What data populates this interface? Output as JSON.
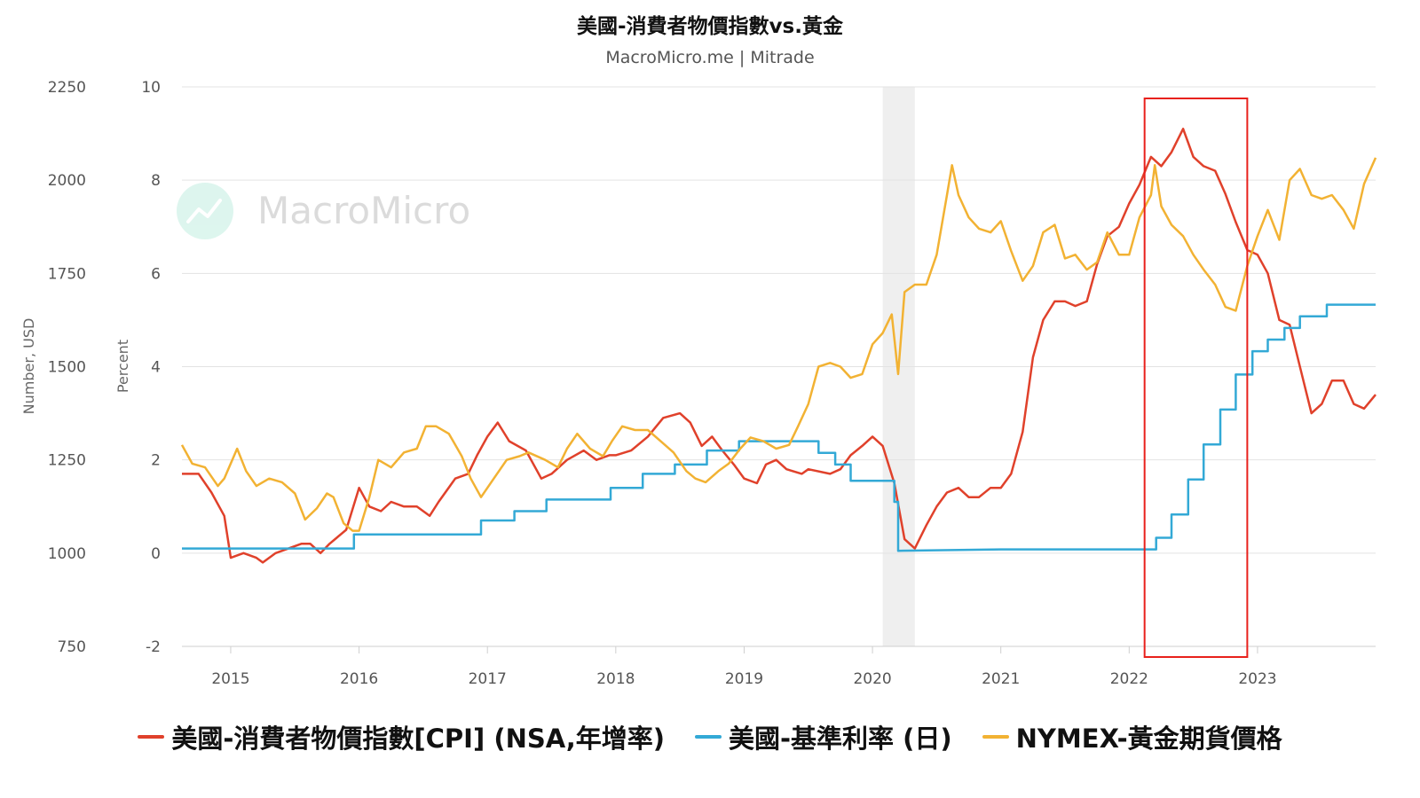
{
  "chart_data": {
    "type": "line",
    "title": "美國-消費者物價指數vs.黃金",
    "subtitle": "MacroMicro.me | Mitrade",
    "watermark": "MacroMicro",
    "left_axis": {
      "label": "Number, USD",
      "range": [
        750,
        2250
      ],
      "ticks": [
        "2250",
        "2000",
        "1750",
        "1500",
        "1250",
        "1000",
        "750"
      ]
    },
    "right_axis": {
      "label": "Percent",
      "range": [
        -2,
        10
      ],
      "ticks": [
        "10",
        "8",
        "6",
        "4",
        "2",
        "0",
        "-2"
      ]
    },
    "x_ticks": [
      "2015",
      "2016",
      "2017",
      "2018",
      "2019",
      "2020",
      "2021",
      "2022",
      "2023"
    ],
    "x_range": [
      2014.62,
      2023.92
    ],
    "grid": true,
    "legend_position": "bottom",
    "recession_band": [
      2020.08,
      2020.33
    ],
    "highlight_box": [
      2022.12,
      2022.92
    ],
    "series": [
      {
        "name": "美國-消費者物價指數[CPI] (NSA,年增率)",
        "axis": "right",
        "color": "#e0412b",
        "points": [
          [
            2014.62,
            1.7
          ],
          [
            2014.75,
            1.7
          ],
          [
            2014.85,
            1.3
          ],
          [
            2014.95,
            0.8
          ],
          [
            2015.0,
            -0.1
          ],
          [
            2015.1,
            0.0
          ],
          [
            2015.2,
            -0.1
          ],
          [
            2015.25,
            -0.2
          ],
          [
            2015.35,
            0.0
          ],
          [
            2015.45,
            0.1
          ],
          [
            2015.55,
            0.2
          ],
          [
            2015.62,
            0.2
          ],
          [
            2015.7,
            0.0
          ],
          [
            2015.77,
            0.2
          ],
          [
            2015.9,
            0.5
          ],
          [
            2016.0,
            1.4
          ],
          [
            2016.08,
            1.0
          ],
          [
            2016.17,
            0.9
          ],
          [
            2016.25,
            1.1
          ],
          [
            2016.35,
            1.0
          ],
          [
            2016.45,
            1.0
          ],
          [
            2016.55,
            0.8
          ],
          [
            2016.62,
            1.1
          ],
          [
            2016.75,
            1.6
          ],
          [
            2016.85,
            1.7
          ],
          [
            2016.92,
            2.1
          ],
          [
            2017.0,
            2.5
          ],
          [
            2017.08,
            2.8
          ],
          [
            2017.17,
            2.4
          ],
          [
            2017.3,
            2.2
          ],
          [
            2017.42,
            1.6
          ],
          [
            2017.5,
            1.7
          ],
          [
            2017.62,
            2.0
          ],
          [
            2017.75,
            2.2
          ],
          [
            2017.85,
            2.0
          ],
          [
            2017.95,
            2.1
          ],
          [
            2018.0,
            2.1
          ],
          [
            2018.12,
            2.2
          ],
          [
            2018.25,
            2.5
          ],
          [
            2018.37,
            2.9
          ],
          [
            2018.5,
            3.0
          ],
          [
            2018.58,
            2.8
          ],
          [
            2018.67,
            2.3
          ],
          [
            2018.75,
            2.5
          ],
          [
            2018.83,
            2.2
          ],
          [
            2018.92,
            1.9
          ],
          [
            2019.0,
            1.6
          ],
          [
            2019.1,
            1.5
          ],
          [
            2019.17,
            1.9
          ],
          [
            2019.25,
            2.0
          ],
          [
            2019.33,
            1.8
          ],
          [
            2019.45,
            1.7
          ],
          [
            2019.5,
            1.8
          ],
          [
            2019.67,
            1.7
          ],
          [
            2019.75,
            1.8
          ],
          [
            2019.83,
            2.1
          ],
          [
            2019.92,
            2.3
          ],
          [
            2020.0,
            2.5
          ],
          [
            2020.08,
            2.3
          ],
          [
            2020.17,
            1.5
          ],
          [
            2020.25,
            0.3
          ],
          [
            2020.33,
            0.1
          ],
          [
            2020.42,
            0.6
          ],
          [
            2020.5,
            1.0
          ],
          [
            2020.58,
            1.3
          ],
          [
            2020.67,
            1.4
          ],
          [
            2020.75,
            1.2
          ],
          [
            2020.83,
            1.2
          ],
          [
            2020.92,
            1.4
          ],
          [
            2021.0,
            1.4
          ],
          [
            2021.08,
            1.7
          ],
          [
            2021.17,
            2.6
          ],
          [
            2021.25,
            4.2
          ],
          [
            2021.33,
            5.0
          ],
          [
            2021.42,
            5.4
          ],
          [
            2021.5,
            5.4
          ],
          [
            2021.58,
            5.3
          ],
          [
            2021.67,
            5.4
          ],
          [
            2021.75,
            6.2
          ],
          [
            2021.83,
            6.8
          ],
          [
            2021.92,
            7.0
          ],
          [
            2022.0,
            7.5
          ],
          [
            2022.08,
            7.9
          ],
          [
            2022.17,
            8.5
          ],
          [
            2022.25,
            8.3
          ],
          [
            2022.33,
            8.6
          ],
          [
            2022.42,
            9.1
          ],
          [
            2022.5,
            8.5
          ],
          [
            2022.58,
            8.3
          ],
          [
            2022.67,
            8.2
          ],
          [
            2022.75,
            7.7
          ],
          [
            2022.83,
            7.1
          ],
          [
            2022.92,
            6.5
          ],
          [
            2023.0,
            6.4
          ],
          [
            2023.08,
            6.0
          ],
          [
            2023.17,
            5.0
          ],
          [
            2023.25,
            4.9
          ],
          [
            2023.33,
            4.0
          ],
          [
            2023.42,
            3.0
          ],
          [
            2023.5,
            3.2
          ],
          [
            2023.58,
            3.7
          ],
          [
            2023.67,
            3.7
          ],
          [
            2023.75,
            3.2
          ],
          [
            2023.83,
            3.1
          ],
          [
            2023.92,
            3.4
          ]
        ]
      },
      {
        "name": "美國-基準利率 (日)",
        "axis": "right",
        "color": "#33a9d6",
        "points": [
          [
            2014.62,
            0.1
          ],
          [
            2015.96,
            0.1
          ],
          [
            2015.96,
            0.4
          ],
          [
            2016.95,
            0.4
          ],
          [
            2016.95,
            0.7
          ],
          [
            2017.21,
            0.7
          ],
          [
            2017.21,
            0.9
          ],
          [
            2017.46,
            0.9
          ],
          [
            2017.46,
            1.15
          ],
          [
            2017.96,
            1.15
          ],
          [
            2017.96,
            1.4
          ],
          [
            2018.21,
            1.4
          ],
          [
            2018.21,
            1.7
          ],
          [
            2018.46,
            1.7
          ],
          [
            2018.46,
            1.9
          ],
          [
            2018.71,
            1.9
          ],
          [
            2018.71,
            2.2
          ],
          [
            2018.96,
            2.2
          ],
          [
            2018.96,
            2.4
          ],
          [
            2019.58,
            2.4
          ],
          [
            2019.58,
            2.15
          ],
          [
            2019.71,
            2.15
          ],
          [
            2019.71,
            1.9
          ],
          [
            2019.83,
            1.9
          ],
          [
            2019.83,
            1.55
          ],
          [
            2020.17,
            1.55
          ],
          [
            2020.17,
            1.1
          ],
          [
            2020.2,
            1.1
          ],
          [
            2020.2,
            0.05
          ],
          [
            2021.0,
            0.08
          ],
          [
            2022.21,
            0.08
          ],
          [
            2022.21,
            0.33
          ],
          [
            2022.33,
            0.33
          ],
          [
            2022.33,
            0.83
          ],
          [
            2022.46,
            0.83
          ],
          [
            2022.46,
            1.58
          ],
          [
            2022.58,
            1.58
          ],
          [
            2022.58,
            2.33
          ],
          [
            2022.71,
            2.33
          ],
          [
            2022.71,
            3.08
          ],
          [
            2022.83,
            3.08
          ],
          [
            2022.83,
            3.83
          ],
          [
            2022.96,
            3.83
          ],
          [
            2022.96,
            4.33
          ],
          [
            2023.08,
            4.33
          ],
          [
            2023.08,
            4.58
          ],
          [
            2023.21,
            4.58
          ],
          [
            2023.21,
            4.83
          ],
          [
            2023.33,
            4.83
          ],
          [
            2023.33,
            5.08
          ],
          [
            2023.54,
            5.08
          ],
          [
            2023.54,
            5.33
          ],
          [
            2023.92,
            5.33
          ]
        ]
      },
      {
        "name": "NYMEX-黃金期貨價格",
        "axis": "left",
        "color": "#f2b233",
        "points": [
          [
            2014.62,
            1290
          ],
          [
            2014.7,
            1240
          ],
          [
            2014.8,
            1230
          ],
          [
            2014.9,
            1180
          ],
          [
            2014.95,
            1200
          ],
          [
            2015.05,
            1280
          ],
          [
            2015.12,
            1220
          ],
          [
            2015.2,
            1180
          ],
          [
            2015.3,
            1200
          ],
          [
            2015.4,
            1190
          ],
          [
            2015.5,
            1160
          ],
          [
            2015.58,
            1090
          ],
          [
            2015.67,
            1120
          ],
          [
            2015.75,
            1160
          ],
          [
            2015.8,
            1150
          ],
          [
            2015.88,
            1080
          ],
          [
            2015.95,
            1060
          ],
          [
            2016.0,
            1060
          ],
          [
            2016.08,
            1150
          ],
          [
            2016.15,
            1250
          ],
          [
            2016.25,
            1230
          ],
          [
            2016.35,
            1270
          ],
          [
            2016.45,
            1280
          ],
          [
            2016.52,
            1340
          ],
          [
            2016.6,
            1340
          ],
          [
            2016.7,
            1320
          ],
          [
            2016.8,
            1260
          ],
          [
            2016.87,
            1200
          ],
          [
            2016.95,
            1150
          ],
          [
            2017.05,
            1200
          ],
          [
            2017.15,
            1250
          ],
          [
            2017.25,
            1260
          ],
          [
            2017.32,
            1270
          ],
          [
            2017.45,
            1250
          ],
          [
            2017.55,
            1230
          ],
          [
            2017.62,
            1280
          ],
          [
            2017.7,
            1320
          ],
          [
            2017.8,
            1280
          ],
          [
            2017.9,
            1260
          ],
          [
            2017.97,
            1300
          ],
          [
            2018.05,
            1340
          ],
          [
            2018.15,
            1330
          ],
          [
            2018.25,
            1330
          ],
          [
            2018.35,
            1300
          ],
          [
            2018.45,
            1270
          ],
          [
            2018.55,
            1220
          ],
          [
            2018.62,
            1200
          ],
          [
            2018.7,
            1190
          ],
          [
            2018.8,
            1220
          ],
          [
            2018.88,
            1240
          ],
          [
            2018.97,
            1280
          ],
          [
            2019.05,
            1310
          ],
          [
            2019.15,
            1300
          ],
          [
            2019.25,
            1280
          ],
          [
            2019.35,
            1290
          ],
          [
            2019.42,
            1340
          ],
          [
            2019.5,
            1400
          ],
          [
            2019.58,
            1500
          ],
          [
            2019.67,
            1510
          ],
          [
            2019.75,
            1500
          ],
          [
            2019.83,
            1470
          ],
          [
            2019.92,
            1480
          ],
          [
            2020.0,
            1560
          ],
          [
            2020.08,
            1590
          ],
          [
            2020.15,
            1640
          ],
          [
            2020.2,
            1480
          ],
          [
            2020.25,
            1700
          ],
          [
            2020.33,
            1720
          ],
          [
            2020.42,
            1720
          ],
          [
            2020.5,
            1800
          ],
          [
            2020.58,
            1960
          ],
          [
            2020.62,
            2040
          ],
          [
            2020.67,
            1960
          ],
          [
            2020.75,
            1900
          ],
          [
            2020.83,
            1870
          ],
          [
            2020.92,
            1860
          ],
          [
            2021.0,
            1890
          ],
          [
            2021.08,
            1810
          ],
          [
            2021.17,
            1730
          ],
          [
            2021.25,
            1770
          ],
          [
            2021.33,
            1860
          ],
          [
            2021.42,
            1880
          ],
          [
            2021.5,
            1790
          ],
          [
            2021.58,
            1800
          ],
          [
            2021.67,
            1760
          ],
          [
            2021.75,
            1780
          ],
          [
            2021.83,
            1860
          ],
          [
            2021.92,
            1800
          ],
          [
            2022.0,
            1800
          ],
          [
            2022.08,
            1900
          ],
          [
            2022.17,
            1960
          ],
          [
            2022.2,
            2040
          ],
          [
            2022.25,
            1930
          ],
          [
            2022.33,
            1880
          ],
          [
            2022.42,
            1850
          ],
          [
            2022.5,
            1800
          ],
          [
            2022.58,
            1760
          ],
          [
            2022.67,
            1720
          ],
          [
            2022.75,
            1660
          ],
          [
            2022.83,
            1650
          ],
          [
            2022.92,
            1770
          ],
          [
            2023.0,
            1850
          ],
          [
            2023.08,
            1920
          ],
          [
            2023.17,
            1840
          ],
          [
            2023.25,
            2000
          ],
          [
            2023.33,
            2030
          ],
          [
            2023.42,
            1960
          ],
          [
            2023.5,
            1950
          ],
          [
            2023.58,
            1960
          ],
          [
            2023.67,
            1920
          ],
          [
            2023.75,
            1870
          ],
          [
            2023.83,
            1990
          ],
          [
            2023.92,
            2060
          ]
        ]
      }
    ]
  }
}
